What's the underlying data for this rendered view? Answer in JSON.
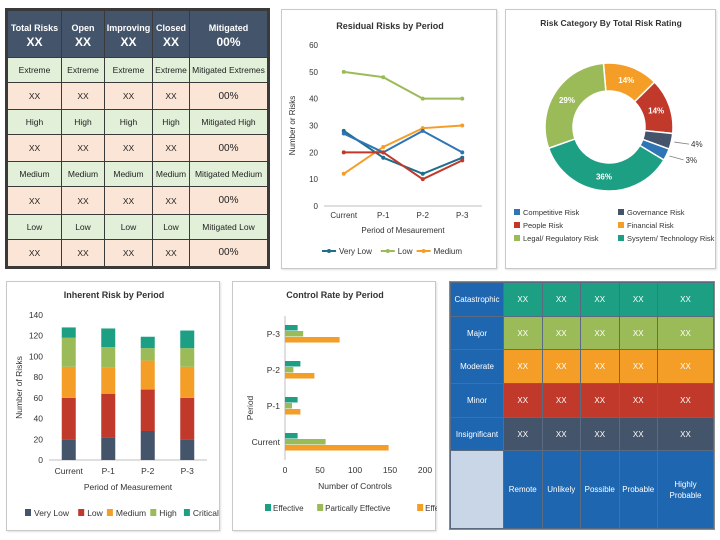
{
  "summary": {
    "headers": [
      {
        "label": "Total Risks",
        "value": "XX"
      },
      {
        "label": "Open",
        "value": "XX"
      },
      {
        "label": "Improving",
        "value": "XX"
      },
      {
        "label": "Closed",
        "value": "XX"
      },
      {
        "label": "Mitigated",
        "value": "00%"
      }
    ],
    "rows": [
      {
        "kind": "level",
        "cells": [
          "Extreme",
          "Extreme",
          "Extreme",
          "Extreme",
          "Mitigated Extremes"
        ]
      },
      {
        "kind": "value",
        "cells": [
          "XX",
          "XX",
          "XX",
          "XX",
          "00%"
        ]
      },
      {
        "kind": "level",
        "cells": [
          "High",
          "High",
          "High",
          "High",
          "Mitigated High"
        ]
      },
      {
        "kind": "value",
        "cells": [
          "XX",
          "XX",
          "XX",
          "XX",
          "00%"
        ]
      },
      {
        "kind": "level",
        "cells": [
          "Medium",
          "Medium",
          "Medium",
          "Medium",
          "Mitigated Medium"
        ]
      },
      {
        "kind": "value",
        "cells": [
          "XX",
          "XX",
          "XX",
          "XX",
          "00%"
        ]
      },
      {
        "kind": "level",
        "cells": [
          "Low",
          "Low",
          "Low",
          "Low",
          "Mitigated Low"
        ]
      },
      {
        "kind": "value",
        "cells": [
          "XX",
          "XX",
          "XX",
          "XX",
          "00%"
        ]
      }
    ]
  },
  "heat_matrix": {
    "rows": [
      {
        "label": "Catastrophic",
        "color": "#1d9f84",
        "cells": [
          "XX",
          "XX",
          "XX",
          "XX",
          "XX"
        ]
      },
      {
        "label": "Major",
        "color": "#9bbb59",
        "cells": [
          "XX",
          "XX",
          "XX",
          "XX",
          "XX"
        ]
      },
      {
        "label": "Moderate",
        "color": "#f59e27",
        "cells": [
          "XX",
          "XX",
          "XX",
          "XX",
          "XX"
        ]
      },
      {
        "label": "Minor",
        "color": "#c0392b",
        "cells": [
          "XX",
          "XX",
          "XX",
          "XX",
          "XX"
        ]
      },
      {
        "label": "Insignificant",
        "color": "#44546a",
        "cells": [
          "XX",
          "XX",
          "XX",
          "XX",
          "XX"
        ]
      }
    ],
    "columns": [
      "Remote",
      "Unlikely",
      "Possible",
      "Probable",
      "Highly Probable"
    ]
  },
  "chart_data": [
    {
      "id": "residual",
      "type": "line",
      "title": "Residual Risks by Period",
      "xlabel": "Period of Mesaurement",
      "ylabel": "Number or Risks",
      "categories": [
        "Current",
        "P-1",
        "P-2",
        "P-3"
      ],
      "ylim": [
        0,
        60
      ],
      "yticks": [
        0,
        10,
        20,
        30,
        40,
        50,
        60
      ],
      "legend_position": "bottom",
      "series": [
        {
          "name": "Very Low",
          "color": "#1f6e8c",
          "values": [
            28,
            18,
            12,
            18
          ]
        },
        {
          "name": "Low",
          "color": "#9bbb59",
          "values": [
            50,
            48,
            40,
            40
          ]
        },
        {
          "name": "Medium",
          "color": "#f59e27",
          "values": [
            12,
            22,
            29,
            30
          ]
        },
        {
          "name": "",
          "color": "#2e75b6",
          "values": [
            27,
            20,
            28,
            20
          ]
        },
        {
          "name": "",
          "color": "#c0392b",
          "values": [
            20,
            20,
            10,
            17
          ]
        }
      ]
    },
    {
      "id": "category",
      "type": "pie",
      "title": "Risk Category By Total Risk Rating",
      "legend_position": "bottom",
      "slices": [
        {
          "name": "Financial Risk",
          "value": 14,
          "label": "14%",
          "color": "#f59e27"
        },
        {
          "name": "People Risk",
          "value": 14,
          "label": "14%",
          "color": "#c0392b"
        },
        {
          "name": "Governance Risk",
          "value": 4,
          "label": "4%",
          "color": "#44546a"
        },
        {
          "name": "Competitive Risk",
          "value": 3,
          "label": "3%",
          "color": "#2e75b6"
        },
        {
          "name": "Sysytem/ Technology Risk",
          "value": 36,
          "label": "36%",
          "color": "#1d9f84"
        },
        {
          "name": "Legal/ Regulatory Risk",
          "value": 29,
          "label": "29%",
          "color": "#9bbb59"
        }
      ],
      "legend_order": [
        "Competitive Risk",
        "Governance Risk",
        "People Risk",
        "Financial Risk",
        "Legal/ Regulatory Risk",
        "Sysytem/ Technology Risk"
      ]
    },
    {
      "id": "inherent",
      "type": "bar",
      "stacked": true,
      "title": "Inherent Risk by Period",
      "xlabel": "Period of Measurement",
      "ylabel": "Number of Risks",
      "categories": [
        "Current",
        "P-1",
        "P-2",
        "P-3"
      ],
      "ylim": [
        0,
        140
      ],
      "yticks": [
        0,
        20,
        40,
        60,
        80,
        100,
        120,
        140
      ],
      "legend_position": "bottom",
      "series": [
        {
          "name": "Very Low",
          "color": "#44546a",
          "values": [
            20,
            22,
            28,
            20
          ]
        },
        {
          "name": "Low",
          "color": "#c0392b",
          "values": [
            40,
            42,
            40,
            40
          ]
        },
        {
          "name": "Medium",
          "color": "#f59e27",
          "values": [
            30,
            25,
            28,
            30
          ]
        },
        {
          "name": "High",
          "color": "#9bbb59",
          "values": [
            28,
            20,
            12,
            18
          ]
        },
        {
          "name": "Critical",
          "color": "#1d9f84",
          "values": [
            10,
            18,
            11,
            17
          ]
        }
      ]
    },
    {
      "id": "control",
      "type": "bar",
      "orientation": "horizontal",
      "title": "Control Rate by Period",
      "xlabel": "Number  of Controls",
      "ylabel": "Period",
      "categories": [
        "Current",
        "P-1",
        "P-2",
        "P-3"
      ],
      "xlim": [
        0,
        200
      ],
      "xticks": [
        0,
        50,
        100,
        150,
        200
      ],
      "legend_position": "bottom",
      "series": [
        {
          "name": "Effective",
          "color": "#1d9f84",
          "values": [
            18,
            18,
            22,
            18
          ]
        },
        {
          "name": "Partically Effective",
          "color": "#9bbb59",
          "values": [
            58,
            10,
            12,
            26
          ]
        },
        {
          "name": "Effective",
          "color": "#f59e27",
          "values": [
            148,
            22,
            42,
            78
          ]
        }
      ]
    }
  ]
}
